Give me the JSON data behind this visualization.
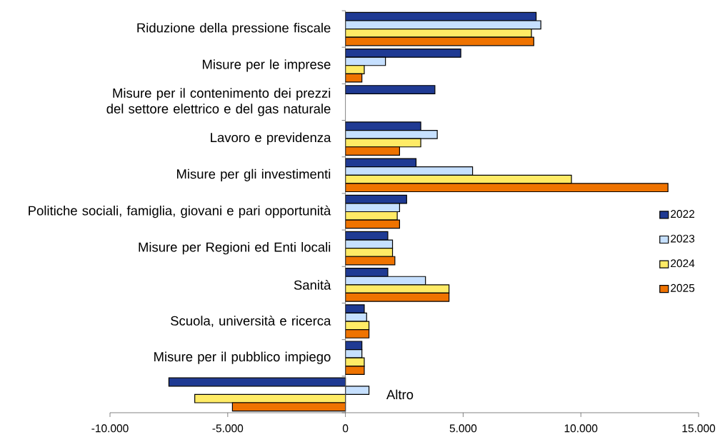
{
  "chart_data": {
    "type": "bar",
    "orientation": "horizontal",
    "categories": [
      "Riduzione della pressione fiscale",
      "Misure per le imprese",
      "Misure per il contenimento dei prezzi del settore elettrico e del gas naturale",
      "Lavoro e previdenza",
      "Misure per gli investimenti",
      "Politiche sociali, famiglia, giovani e pari opportunità",
      "Misure per Regioni ed Enti locali",
      "Sanità",
      "Scuola, università e ricerca",
      "Misure per il pubblico impiego",
      "Altro"
    ],
    "series": [
      {
        "name": "2022",
        "color": "#1f3a93",
        "values": [
          8100,
          4900,
          3800,
          3200,
          3000,
          2600,
          1800,
          1800,
          800,
          700,
          -7500
        ]
      },
      {
        "name": "2023",
        "color": "#c6e0ff",
        "values": [
          8300,
          1700,
          null,
          3900,
          5400,
          2300,
          2000,
          3400,
          900,
          700,
          1000
        ]
      },
      {
        "name": "2024",
        "color": "#ffeb66",
        "values": [
          7900,
          800,
          null,
          3200,
          9600,
          2200,
          2000,
          4400,
          1000,
          800,
          -6400
        ]
      },
      {
        "name": "2025",
        "color": "#ef7300",
        "values": [
          8000,
          700,
          null,
          2300,
          13700,
          2300,
          2100,
          4400,
          1000,
          800,
          -4800
        ]
      }
    ],
    "xlim": [
      -10000,
      15000
    ],
    "xticks": [
      {
        "value": -10000,
        "label": "-10.000"
      },
      {
        "value": -5000,
        "label": "-5.000"
      },
      0,
      {
        "value": 5000,
        "label": "5.000"
      },
      {
        "value": 10000,
        "label": "10.000"
      },
      {
        "value": 15000,
        "label": "15.000"
      }
    ],
    "grid": false,
    "legend": "right"
  }
}
